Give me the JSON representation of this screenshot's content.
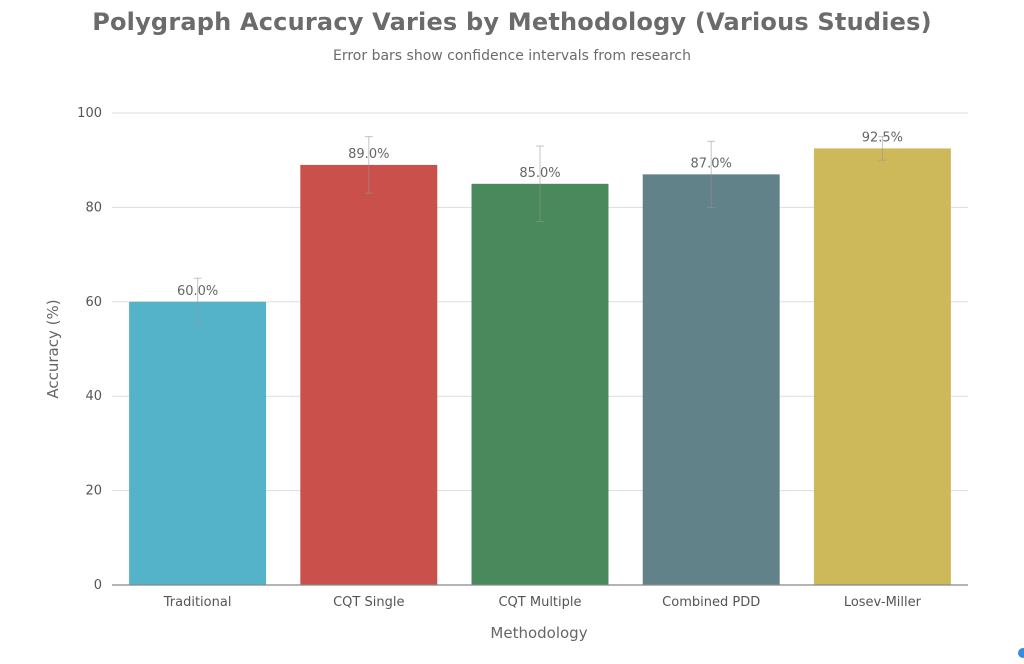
{
  "chart_data": {
    "type": "bar",
    "title": "Polygraph Accuracy Varies by Methodology (Various Studies)",
    "subtitle": "Error bars show confidence intervals from research",
    "xlabel": "Methodology",
    "ylabel": "Accuracy (%)",
    "ylim": [
      0,
      100
    ],
    "yticks": [
      "0",
      "20",
      "40",
      "60",
      "80",
      "100"
    ],
    "grid": true,
    "categories": [
      "Traditional",
      "CQT Single",
      "CQT Multiple",
      "Combined PDD",
      "Losev-Miller"
    ],
    "values": [
      60,
      89,
      85,
      87,
      92.5
    ],
    "data_labels": [
      "60.0%",
      "89.0%",
      "85.0%",
      "87.0%",
      "92.5%"
    ],
    "error_bars": [
      {
        "low": 55,
        "high": 65
      },
      {
        "low": 83,
        "high": 95
      },
      {
        "low": 77,
        "high": 93
      },
      {
        "low": 80,
        "high": 94
      },
      {
        "low": 90,
        "high": 95
      }
    ],
    "colors": [
      "#55b3c9",
      "#c9504b",
      "#4a895b",
      "#62828a",
      "#cdb95a"
    ]
  }
}
